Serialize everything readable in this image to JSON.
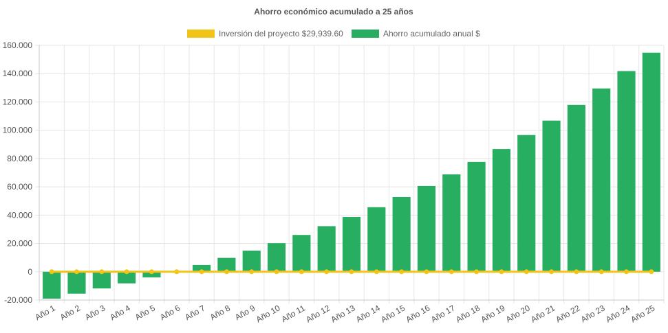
{
  "chart_data": {
    "type": "bar",
    "title": "Ahorro económico acumulado a 25 años",
    "categories": [
      "Año 1",
      "Año 2",
      "Año 3",
      "Año 4",
      "Año 5",
      "Año 6",
      "Año 7",
      "Año 8",
      "Año 9",
      "Año 10",
      "Año 11",
      "Año 12",
      "Año 13",
      "Año 14",
      "Año 15",
      "Año 16",
      "Año 17",
      "Año 18",
      "Año 19",
      "Año 20",
      "Año 21",
      "Año 22",
      "Año 23",
      "Año 24",
      "Año 25"
    ],
    "series": [
      {
        "name": "Inversión del proyecto $29,939.60",
        "kind": "line",
        "color": "#f2c418",
        "values": [
          0,
          0,
          0,
          0,
          0,
          0,
          0,
          0,
          0,
          0,
          0,
          0,
          0,
          0,
          0,
          0,
          0,
          0,
          0,
          0,
          0,
          0,
          0,
          0,
          0
        ]
      },
      {
        "name": "Ahorro acumulado anual $",
        "kind": "bar",
        "color": "#27ae60",
        "values": [
          -19000,
          -15500,
          -11800,
          -8200,
          -4000,
          0,
          4800,
          9800,
          14900,
          20200,
          26000,
          32200,
          38700,
          45600,
          52800,
          60600,
          68800,
          77600,
          86700,
          96600,
          106800,
          117900,
          129500,
          141800,
          154800
        ]
      }
    ],
    "yticks": [
      "-20.000",
      "0",
      "20.000",
      "40.000",
      "60.000",
      "80.000",
      "100.000",
      "120.000",
      "140.000",
      "160.000"
    ],
    "ylim": [
      -20000,
      160000
    ],
    "grid": true,
    "legend_position": "top-center"
  }
}
